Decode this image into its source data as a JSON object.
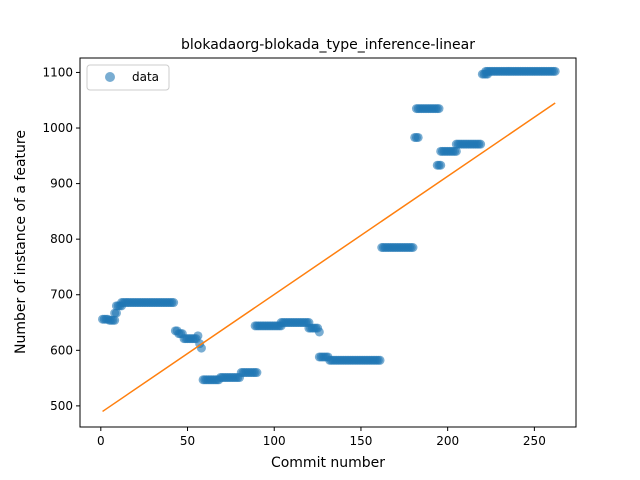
{
  "chart_data": {
    "type": "scatter",
    "title": "blokadaorg-blokada_type_inference-linear",
    "xlabel": "Commit number",
    "ylabel": "Number of instance of a feature",
    "xlim": [
      -12,
      274
    ],
    "ylim": [
      462,
      1126
    ],
    "x_ticks": [
      0,
      50,
      100,
      150,
      200,
      250
    ],
    "y_ticks": [
      500,
      600,
      700,
      800,
      900,
      1000,
      1100
    ],
    "x_tick_labels": [
      "0",
      "50",
      "100",
      "150",
      "200",
      "250"
    ],
    "y_tick_labels": [
      "500",
      "600",
      "700",
      "800",
      "900",
      "1000",
      "1100"
    ],
    "legend": {
      "position": "top-left",
      "entries": [
        {
          "label": "data",
          "kind": "marker"
        }
      ]
    },
    "grid": false,
    "colors": {
      "data": "#1f77b4",
      "fit": "#ff7f0e"
    },
    "series": [
      {
        "name": "data",
        "kind": "scatter",
        "segments": [
          {
            "x_start": 1,
            "x_end": 4,
            "y": 656
          },
          {
            "x_start": 5,
            "x_end": 8,
            "y": 654
          },
          {
            "x_start": 8,
            "x_end": 9,
            "y": 667
          },
          {
            "x_start": 9,
            "x_end": 12,
            "y": 680
          },
          {
            "x_start": 12,
            "x_end": 42,
            "y": 686
          },
          {
            "x_start": 43,
            "x_end": 44,
            "y": 635
          },
          {
            "x_start": 45,
            "x_end": 47,
            "y": 630
          },
          {
            "x_start": 48,
            "x_end": 55,
            "y": 621
          },
          {
            "x_start": 56,
            "x_end": 56,
            "y": 626
          },
          {
            "x_start": 57,
            "x_end": 57,
            "y": 612
          },
          {
            "x_start": 58,
            "x_end": 58,
            "y": 604
          },
          {
            "x_start": 59,
            "x_end": 68,
            "y": 547
          },
          {
            "x_start": 69,
            "x_end": 80,
            "y": 551
          },
          {
            "x_start": 81,
            "x_end": 90,
            "y": 560
          },
          {
            "x_start": 89,
            "x_end": 104,
            "y": 644
          },
          {
            "x_start": 104,
            "x_end": 120,
            "y": 650
          },
          {
            "x_start": 120,
            "x_end": 125,
            "y": 640
          },
          {
            "x_start": 126,
            "x_end": 126,
            "y": 633
          },
          {
            "x_start": 126,
            "x_end": 131,
            "y": 588
          },
          {
            "x_start": 132,
            "x_end": 161,
            "y": 582
          },
          {
            "x_start": 162,
            "x_end": 180,
            "y": 785
          },
          {
            "x_start": 181,
            "x_end": 183,
            "y": 983
          },
          {
            "x_start": 182,
            "x_end": 195,
            "y": 1035
          },
          {
            "x_start": 194,
            "x_end": 196,
            "y": 933
          },
          {
            "x_start": 196,
            "x_end": 205,
            "y": 958
          },
          {
            "x_start": 205,
            "x_end": 219,
            "y": 971
          },
          {
            "x_start": 220,
            "x_end": 223,
            "y": 1097
          },
          {
            "x_start": 222,
            "x_end": 262,
            "y": 1102
          }
        ]
      },
      {
        "name": "",
        "kind": "line",
        "x": [
          1,
          262
        ],
        "y": [
          490,
          1045
        ]
      }
    ]
  }
}
